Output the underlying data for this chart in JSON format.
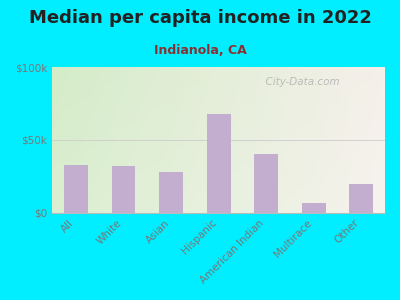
{
  "title": "Median per capita income in 2022",
  "subtitle": "Indianola, CA",
  "categories": [
    "All",
    "White",
    "Asian",
    "Hispanic",
    "American Indian",
    "Multirace",
    "Other"
  ],
  "values": [
    33000,
    32000,
    28000,
    68000,
    40000,
    7000,
    20000
  ],
  "bar_color": "#c4aed0",
  "background_outer": "#00eeff",
  "background_inner_left": "#d4ecc8",
  "background_inner_right": "#f5f0ea",
  "yticks": [
    0,
    50000,
    100000
  ],
  "ytick_labels": [
    "$0",
    "$50k",
    "$100k"
  ],
  "ylim": [
    0,
    100000
  ],
  "title_fontsize": 13,
  "subtitle_fontsize": 9,
  "axis_label_fontsize": 7.5,
  "watermark": "  City-Data.com",
  "title_color": "#222222",
  "subtitle_color": "#8B3030",
  "tick_color": "#777777"
}
